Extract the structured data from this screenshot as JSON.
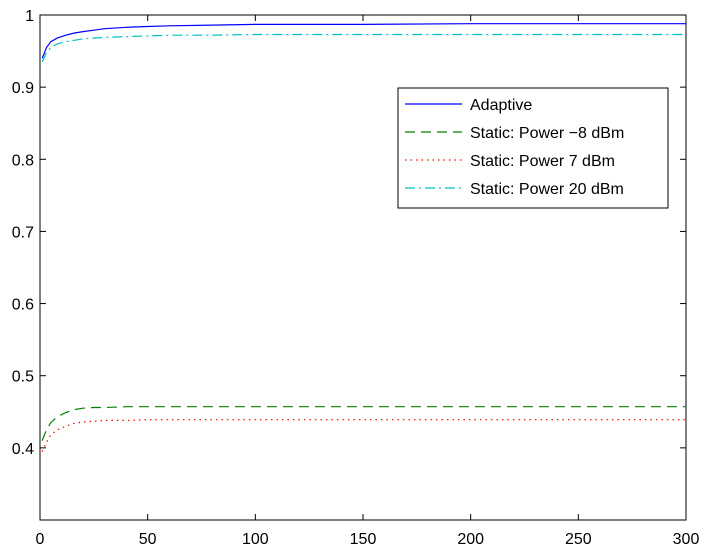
{
  "chart_data": {
    "type": "line",
    "title": "",
    "xlabel": "",
    "ylabel": "",
    "xlim": [
      0,
      300
    ],
    "ylim": [
      0.3,
      1.0
    ],
    "xticks": [
      0,
      50,
      100,
      150,
      200,
      250,
      300
    ],
    "yticks": [
      0.4,
      0.5,
      0.6,
      0.7,
      0.8,
      0.9,
      1.0
    ],
    "xtick_labels": [
      "0",
      "50",
      "100",
      "150",
      "200",
      "250",
      "300"
    ],
    "ytick_labels": [
      "0.4",
      "0.5",
      "0.6",
      "0.7",
      "0.8",
      "0.9",
      "1"
    ],
    "grid": false,
    "legend_position": "upper-right",
    "series": [
      {
        "name": "Adaptive",
        "color": "#0000ff",
        "style": "solid",
        "x": [
          1,
          3,
          5,
          8,
          12,
          16,
          20,
          25,
          30,
          40,
          50,
          60,
          80,
          100,
          150,
          200,
          250,
          300
        ],
        "y": [
          0.94,
          0.955,
          0.963,
          0.968,
          0.972,
          0.975,
          0.977,
          0.979,
          0.981,
          0.983,
          0.984,
          0.985,
          0.986,
          0.987,
          0.987,
          0.988,
          0.988,
          0.988
        ]
      },
      {
        "name": "Static: Power −8 dBm",
        "color": "#008000",
        "style": "dashed",
        "x": [
          1,
          3,
          5,
          8,
          12,
          16,
          20,
          25,
          30,
          40,
          50,
          100,
          150,
          200,
          250,
          300
        ],
        "y": [
          0.41,
          0.425,
          0.435,
          0.443,
          0.449,
          0.453,
          0.455,
          0.456,
          0.456,
          0.457,
          0.457,
          0.457,
          0.457,
          0.457,
          0.457,
          0.457
        ]
      },
      {
        "name": "Static: Power 7 dBm",
        "color": "#ff0000",
        "style": "dotted",
        "x": [
          1,
          3,
          5,
          8,
          12,
          16,
          20,
          25,
          30,
          40,
          50,
          100,
          150,
          200,
          250,
          300
        ],
        "y": [
          0.395,
          0.408,
          0.418,
          0.425,
          0.43,
          0.434,
          0.436,
          0.437,
          0.438,
          0.438,
          0.439,
          0.439,
          0.439,
          0.439,
          0.439,
          0.439
        ]
      },
      {
        "name": "Static: Power 20 dBm",
        "color": "#00bfbf",
        "style": "dashdot",
        "x": [
          1,
          3,
          5,
          8,
          12,
          16,
          20,
          25,
          30,
          40,
          50,
          60,
          80,
          100,
          150,
          200,
          250,
          300
        ],
        "y": [
          0.935,
          0.948,
          0.955,
          0.96,
          0.963,
          0.965,
          0.967,
          0.968,
          0.969,
          0.97,
          0.971,
          0.972,
          0.972,
          0.973,
          0.973,
          0.973,
          0.973,
          0.973
        ]
      }
    ]
  }
}
